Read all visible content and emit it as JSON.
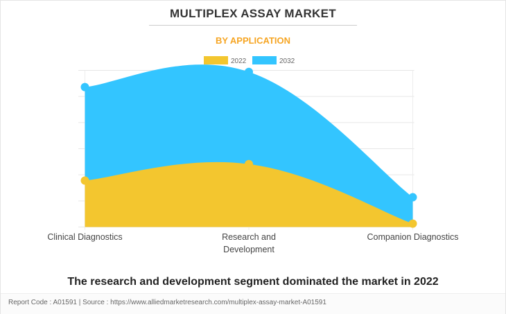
{
  "header": {
    "title": "MULTIPLEX ASSAY MARKET",
    "subtitle": "BY APPLICATION"
  },
  "headline": "The research and development segment dominated the market in 2022",
  "footer": "Report Code : A01591  |  Source : https://www.alliedmarketresearch.com/multiplex-assay-market-A01591",
  "colors": {
    "2022": "#f3c62f",
    "2032": "#33c5ff"
  },
  "chart_data": {
    "type": "area",
    "title": "MULTIPLEX ASSAY MARKET",
    "subtitle": "BY APPLICATION",
    "categories": [
      [
        "Clinical Diagnostics"
      ],
      [
        "Research and",
        "Development"
      ],
      [
        "Companion Diagnostics"
      ]
    ],
    "series": [
      {
        "name": "2022",
        "values": [
          1.78,
          2.41,
          0.13
        ]
      },
      {
        "name": "2032",
        "values": [
          5.36,
          5.94,
          1.14
        ]
      }
    ],
    "ylim": [
      0,
      6
    ],
    "yticks_shown": false,
    "grid": true,
    "legend": "top-center"
  }
}
